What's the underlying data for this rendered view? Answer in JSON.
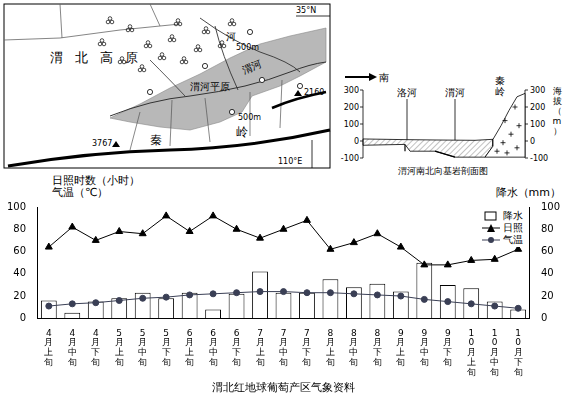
{
  "map": {
    "region": "渭北高原",
    "plain": "渭河平原",
    "river": "渭河",
    "river2": "河",
    "contours": [
      "500m",
      "500m"
    ],
    "peaks": [
      "3767",
      "2160"
    ],
    "mountain": [
      "秦",
      "岭"
    ],
    "latitude": "35°N",
    "longitude": "110°E"
  },
  "profile": {
    "title": "渭河南北向基岩剖面图",
    "direction": "南",
    "labels": [
      "洛河",
      "渭河",
      "秦岭"
    ],
    "axis_title": "海拔（m）",
    "ticks": [
      300,
      200,
      100,
      0,
      -100
    ]
  },
  "chart_data": {
    "type": "bar",
    "title": "渭北红地球葡萄产区气象资料",
    "ylabel": [
      "日照时数（小时）",
      "气温（℃）"
    ],
    "y2label": "降水（mm）",
    "categories": [
      "4月上旬",
      "4月中旬",
      "4月下旬",
      "5月上旬",
      "5月中旬",
      "5月下旬",
      "6月上旬",
      "6月中旬",
      "6月下旬",
      "7月上旬",
      "7月中旬",
      "7月下旬",
      "8月上旬",
      "8月中旬",
      "8月下旬",
      "9月上旬",
      "9月中旬",
      "9月下旬",
      "10月上旬",
      "10月中旬",
      "10月下旬"
    ],
    "series": [
      {
        "name": "降水",
        "type": "bar",
        "axis": "y2",
        "color": "#ffffff",
        "values": [
          16,
          5,
          15,
          18,
          23,
          18,
          23,
          8,
          22,
          42,
          23,
          23,
          35,
          28,
          31,
          24,
          50,
          30,
          27,
          15,
          8
        ]
      },
      {
        "name": "日照",
        "type": "line",
        "marker": "triangle",
        "color": "#000000",
        "values": [
          64,
          82,
          70,
          78,
          76,
          92,
          78,
          92,
          80,
          72,
          80,
          88,
          62,
          68,
          76,
          64,
          48,
          48,
          52,
          53,
          62
        ]
      },
      {
        "name": "气温",
        "type": "line",
        "marker": "circle",
        "color": "#3a3f55",
        "values": [
          11,
          13,
          14,
          16,
          18,
          19,
          21,
          22,
          23,
          24,
          24,
          23,
          23,
          22,
          21,
          20,
          17,
          15,
          13,
          11,
          9
        ]
      }
    ],
    "ylim": [
      0,
      100
    ],
    "yticks": [
      0,
      20,
      40,
      60,
      80,
      100
    ],
    "y2lim": [
      0,
      100
    ],
    "y2ticks": [
      0,
      20,
      40,
      60,
      80,
      100
    ],
    "grid": false,
    "legend": "top-right"
  }
}
